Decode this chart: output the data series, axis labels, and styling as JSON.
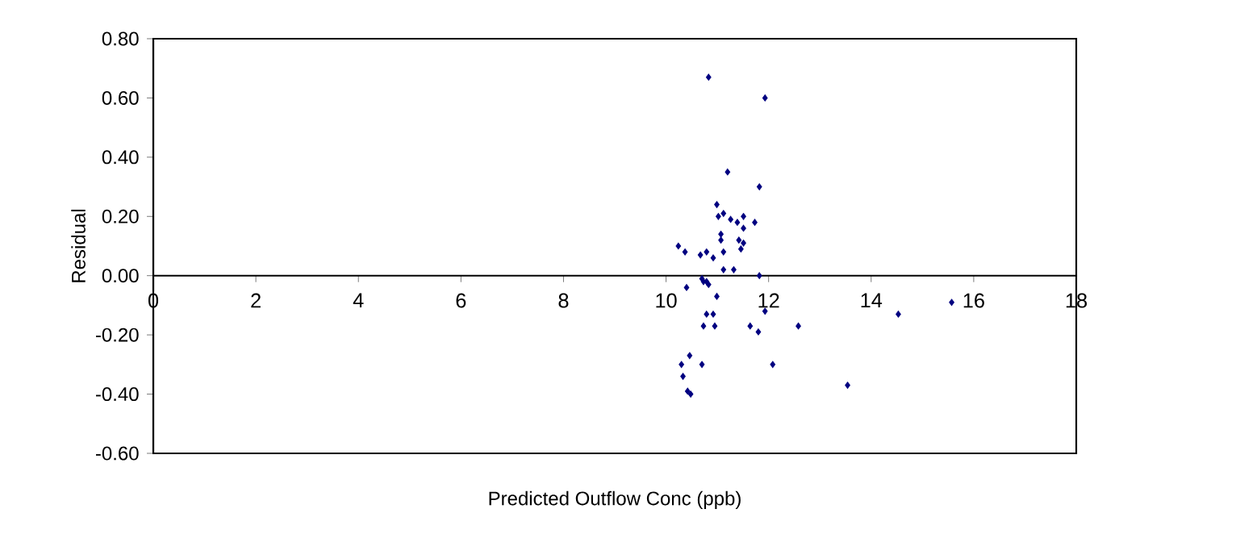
{
  "chart_data": {
    "type": "scatter",
    "xlabel": "Predicted Outflow Conc (ppb)",
    "ylabel": "Residual",
    "xlim": [
      0,
      18
    ],
    "xticks": [
      0,
      2,
      4,
      6,
      8,
      10,
      12,
      14,
      16,
      18
    ],
    "ylim": [
      -0.6,
      0.8
    ],
    "yticks": [
      {
        "value": -0.6,
        "label": "-0.60"
      },
      {
        "value": -0.4,
        "label": "-0.40"
      },
      {
        "value": -0.2,
        "label": "-0.20"
      },
      {
        "value": 0,
        "label": "0.00"
      },
      {
        "value": 0.2,
        "label": "0.20"
      },
      {
        "value": 0.4,
        "label": "0.40"
      },
      {
        "value": 0.6,
        "label": "0.60"
      },
      {
        "value": 0.8,
        "label": "0.80"
      }
    ],
    "marker": "diamond",
    "grid": false,
    "series": [
      {
        "color": "#000080",
        "x": [
          10.83,
          11.93,
          11.2,
          11.82,
          10.99,
          11.02,
          11.12,
          11.26,
          11.39,
          11.51,
          11.51,
          11.73,
          11.07,
          11.07,
          11.42,
          11.51,
          11.46,
          10.24,
          10.37,
          10.67,
          10.79,
          10.92,
          11.12,
          11.12,
          11.32,
          11.82,
          10.4,
          10.7,
          10.73,
          10.79,
          10.83,
          10.99,
          10.79,
          10.92,
          10.73,
          10.95,
          11.64,
          11.8,
          11.93,
          12.58,
          10.46,
          10.3,
          10.7,
          12.08,
          10.33,
          10.42,
          10.48,
          13.54,
          14.53,
          15.57
        ],
        "values": [
          0.67,
          0.6,
          0.35,
          0.3,
          0.24,
          0.2,
          0.21,
          0.19,
          0.18,
          0.2,
          0.16,
          0.18,
          0.14,
          0.12,
          0.12,
          0.11,
          0.09,
          0.1,
          0.08,
          0.07,
          0.08,
          0.06,
          0.08,
          0.02,
          0.02,
          0.0,
          -0.04,
          -0.01,
          -0.02,
          -0.02,
          -0.03,
          -0.07,
          -0.13,
          -0.13,
          -0.17,
          -0.17,
          -0.17,
          -0.19,
          -0.12,
          -0.17,
          -0.27,
          -0.3,
          -0.3,
          -0.3,
          -0.34,
          -0.39,
          -0.4,
          -0.37,
          -0.13,
          -0.09
        ]
      }
    ]
  }
}
